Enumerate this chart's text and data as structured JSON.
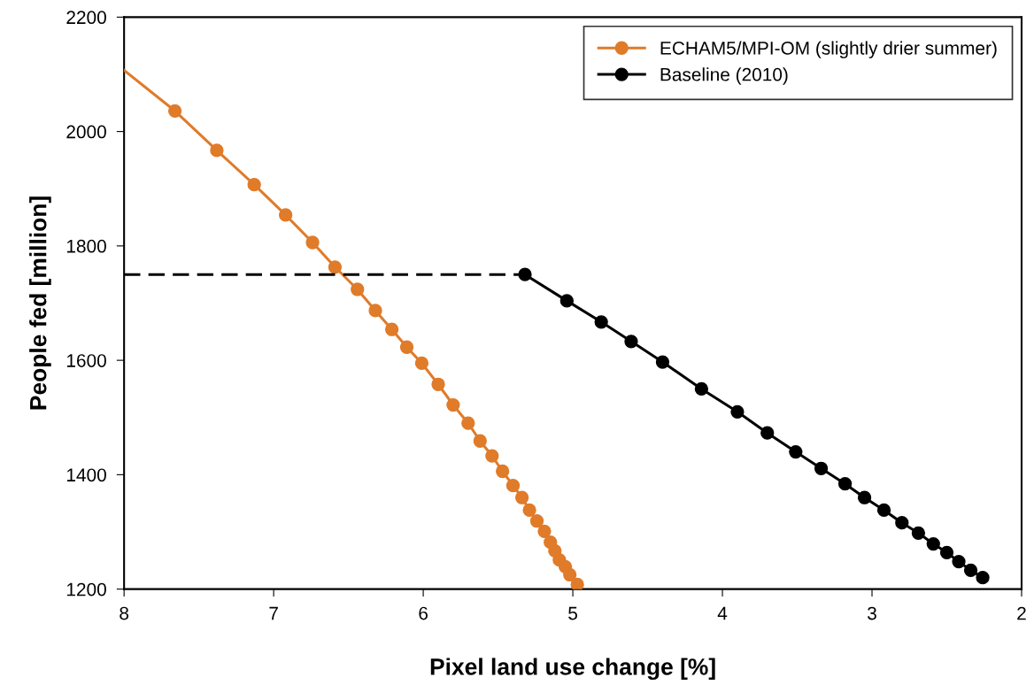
{
  "chart_data": {
    "type": "line",
    "xlabel": "Pixel land use change [%]",
    "ylabel": "People fed [million]",
    "xlim": [
      8,
      2
    ],
    "xticks": [
      8,
      7,
      6,
      5,
      4,
      3,
      2
    ],
    "ylim": [
      1200,
      2200
    ],
    "yticks": [
      1200,
      1400,
      1600,
      1800,
      2000,
      2200
    ],
    "grid": false,
    "legend": "top right",
    "marker": "circle",
    "line_style": "solid",
    "series": [
      {
        "name": "ECHAM5/MPI-OM (slightly drier summer)",
        "color": "#e07b2a",
        "x": [
          7.66,
          7.38,
          7.13,
          6.92,
          6.74,
          6.59,
          6.44,
          6.32,
          6.21,
          6.11,
          6.01,
          5.9,
          5.8,
          5.7,
          5.62,
          5.54,
          5.47,
          5.4,
          5.34,
          5.29,
          5.24,
          5.19,
          5.15,
          5.12,
          5.09,
          5.05,
          5.02,
          4.97
        ],
        "values": [
          2036,
          1967,
          1907,
          1854,
          1806,
          1763,
          1724,
          1687,
          1654,
          1623,
          1595,
          1558,
          1522,
          1490,
          1459,
          1433,
          1406,
          1381,
          1360,
          1338,
          1319,
          1301,
          1282,
          1267,
          1251,
          1239,
          1225,
          1208
        ]
      },
      {
        "color": "#e07b2a",
        "x": [
          8.0,
          7.66
        ],
        "values": [
          2107,
          2036
        ],
        "marker": "none"
      },
      {
        "name": "Baseline (2010)",
        "color": "#000000",
        "x": [
          5.32,
          5.04,
          4.81,
          4.61,
          4.4,
          4.14,
          3.9,
          3.7,
          3.51,
          3.34,
          3.18,
          3.05,
          2.92,
          2.8,
          2.69,
          2.59,
          2.5,
          2.42,
          2.34,
          2.26
        ],
        "values": [
          1750,
          1704,
          1667,
          1633,
          1597,
          1550,
          1510,
          1473,
          1440,
          1411,
          1384,
          1360,
          1338,
          1316,
          1298,
          1279,
          1264,
          1248,
          1233,
          1220
        ]
      },
      {
        "color": "#000000",
        "x": [
          8,
          5.32
        ],
        "values": [
          1750,
          1750
        ],
        "marker": "none",
        "line_style": "dashed"
      }
    ]
  }
}
